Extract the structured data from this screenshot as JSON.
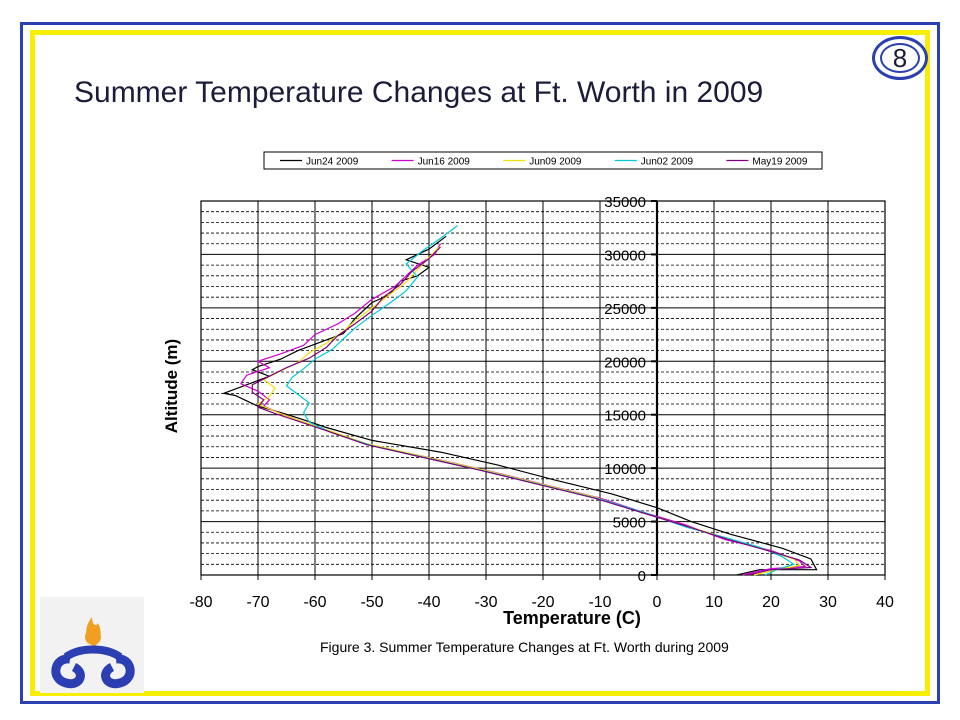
{
  "slide": {
    "title": "Summer Temperature Changes at Ft. Worth in 2009",
    "page_number": "8",
    "caption": "Figure 3. Summer Temperature Changes at Ft. Worth during 2009"
  },
  "colors": {
    "frame_blue": "#2a3fb0",
    "frame_yellow": "#f6f000",
    "logo_flame": "#f0a020",
    "logo_blue": "#2b3fb3"
  },
  "chart_data": {
    "type": "line",
    "xlabel": "Temperature (C)",
    "ylabel": "Altitude (m)",
    "xlim": [
      -80,
      40
    ],
    "ylim": [
      0,
      35000
    ],
    "xticks": [
      -80,
      -70,
      -60,
      -50,
      -40,
      -30,
      -20,
      -10,
      0,
      10,
      20,
      30,
      40
    ],
    "yticks": [
      0,
      5000,
      10000,
      15000,
      20000,
      25000,
      30000,
      35000
    ],
    "ytick_labels": [
      "0",
      "5000",
      "10000",
      "15000",
      "20000",
      "25000",
      "30000",
      "35000"
    ],
    "grid": true,
    "legend_position": "top",
    "series": [
      {
        "name": "Jun24 2009",
        "color": "#000000",
        "x": [
          14,
          18,
          28,
          27,
          22,
          13,
          6,
          0,
          -8,
          -18,
          -28,
          -38,
          -50,
          -58,
          -63,
          -66,
          -70,
          -72,
          -74,
          -76,
          -72,
          -68,
          -71,
          -70,
          -66,
          -63,
          -58,
          -55,
          -53,
          -50,
          -47,
          -45,
          -42,
          -40,
          -44,
          -40,
          -37
        ],
        "y": [
          0,
          500,
          500,
          1500,
          2500,
          3800,
          5000,
          6300,
          7600,
          8900,
          10300,
          11500,
          12600,
          13800,
          14700,
          15200,
          15800,
          16300,
          16800,
          17000,
          17800,
          18600,
          19200,
          19500,
          20200,
          21000,
          22000,
          22600,
          24000,
          25500,
          26200,
          27500,
          28000,
          28800,
          29500,
          30500,
          31700
        ]
      },
      {
        "name": "Jun16 2009",
        "color": "#d000d0",
        "x": [
          15,
          20,
          26,
          25,
          20,
          12,
          5,
          -2,
          -10,
          -20,
          -30,
          -40,
          -50,
          -57,
          -62,
          -66,
          -69,
          -68,
          -70,
          -73,
          -72,
          -68,
          -70,
          -66,
          -62,
          -60,
          -56,
          -53,
          -50,
          -46,
          -44,
          -42,
          -39,
          -38
        ],
        "y": [
          0,
          600,
          800,
          1300,
          2300,
          3300,
          4700,
          5800,
          7200,
          8500,
          9800,
          11000,
          12100,
          13400,
          14300,
          15100,
          15800,
          16400,
          17200,
          17900,
          18700,
          19400,
          20000,
          20700,
          21500,
          22500,
          23500,
          24500,
          25800,
          27000,
          28000,
          29000,
          30000,
          31000
        ]
      },
      {
        "name": "Jun09 2009",
        "color": "#f0e000",
        "x": [
          17,
          22,
          25,
          24,
          19,
          12,
          5,
          -3,
          -11,
          -21,
          -31,
          -41,
          -51,
          -58,
          -63,
          -67,
          -70,
          -68,
          -67,
          -69,
          -66,
          -63,
          -61,
          -58,
          -55,
          -53,
          -50,
          -47,
          -44,
          -42,
          -40,
          -38
        ],
        "y": [
          0,
          600,
          900,
          1500,
          2400,
          3500,
          4600,
          5900,
          7300,
          8600,
          9900,
          11100,
          12300,
          13600,
          14500,
          15300,
          16000,
          16700,
          17500,
          18300,
          19100,
          19900,
          20800,
          21700,
          22800,
          23800,
          25000,
          26200,
          27400,
          28600,
          29700,
          30800
        ]
      },
      {
        "name": "Jun02 2009",
        "color": "#00c8d8",
        "x": [
          19,
          21,
          24,
          22,
          18,
          12,
          5,
          -2,
          -10,
          -20,
          -30,
          -40,
          -50,
          -57,
          -61,
          -62,
          -61,
          -63,
          -65,
          -64,
          -62,
          -60,
          -57,
          -55,
          -53,
          -50,
          -47,
          -44,
          -42,
          -44,
          -41,
          -38,
          -35
        ],
        "y": [
          0,
          500,
          1000,
          1700,
          2600,
          3500,
          4500,
          5800,
          7100,
          8400,
          9700,
          10900,
          12100,
          13300,
          14300,
          15200,
          16100,
          16900,
          17700,
          18500,
          19300,
          20200,
          21100,
          22100,
          23100,
          24300,
          25400,
          26600,
          27900,
          29100,
          30400,
          31500,
          32700
        ]
      },
      {
        "name": "May19 2009",
        "color": "#800080",
        "x": [
          16,
          20,
          27,
          25,
          20,
          12,
          5,
          -3,
          -11,
          -21,
          -31,
          -41,
          -51,
          -58,
          -63,
          -67,
          -70,
          -69,
          -71,
          -71,
          -68,
          -65,
          -61,
          -58,
          -56,
          -53,
          -50,
          -48,
          -45,
          -43,
          -40,
          -38
        ],
        "y": [
          0,
          500,
          700,
          1400,
          2200,
          3400,
          4600,
          5900,
          7200,
          8500,
          9800,
          11000,
          12200,
          13500,
          14400,
          15100,
          15700,
          16400,
          17100,
          17800,
          18600,
          19400,
          20300,
          21300,
          22400,
          23500,
          24700,
          26000,
          27200,
          28400,
          29600,
          30700
        ]
      }
    ]
  }
}
